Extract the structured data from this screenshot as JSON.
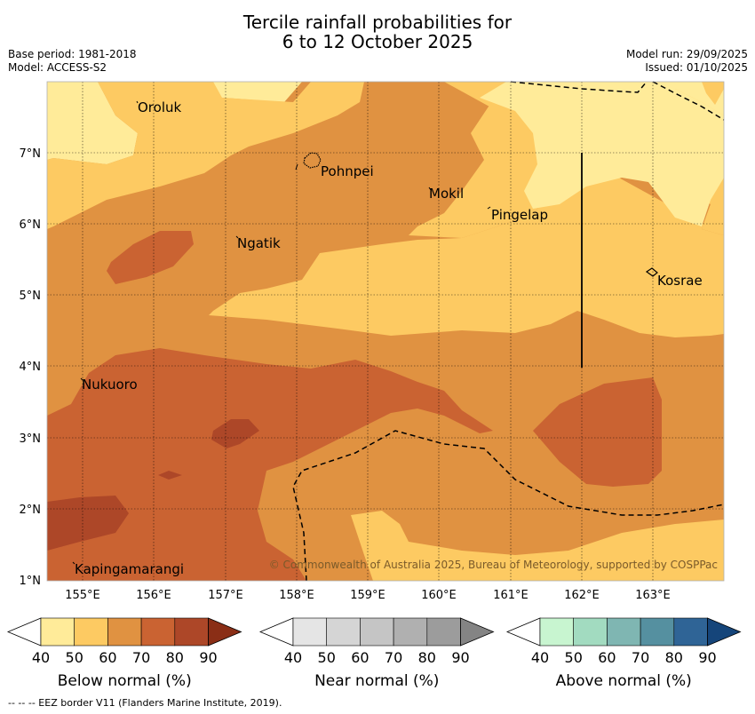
{
  "title": {
    "line1": "Tercile rainfall probabilities for",
    "line2": "6 to 12 October 2025"
  },
  "meta": {
    "base_period": "Base period: 1981-2018",
    "model": "Model: ACCESS-S2",
    "model_run": "Model run: 29/09/2025",
    "issued": "Issued: 01/10/2025"
  },
  "map": {
    "lat_labels": [
      "7°N",
      "6°N",
      "5°N",
      "4°N",
      "3°N",
      "2°N",
      "1°N"
    ],
    "lon_labels": [
      "155°E",
      "156°E",
      "157°E",
      "158°E",
      "159°E",
      "160°E",
      "161°E",
      "162°E",
      "163°E"
    ],
    "places": [
      "Oroluk",
      "Pohnpei",
      "Mokil",
      "Pingelap",
      "Ngatik",
      "Kosrae",
      "Nukuoro",
      "Kapingamarangi"
    ],
    "copyright": "© Commonwealth of Australia 2025, Bureau of Meteorology, supported by COSPPac"
  },
  "colorbars": [
    {
      "title": "Below normal (%)",
      "ticks": [
        "40",
        "50",
        "60",
        "70",
        "80",
        "90"
      ],
      "colors": [
        "#ffffff",
        "#ffeb99",
        "#fdca62",
        "#e09241",
        "#ca6332",
        "#ad4728",
        "#8a2e16"
      ]
    },
    {
      "title": "Near normal (%)",
      "ticks": [
        "40",
        "50",
        "60",
        "70",
        "80",
        "90"
      ],
      "colors": [
        "#ffffff",
        "#e5e5e5",
        "#d5d5d5",
        "#c5c5c5",
        "#b0b0b0",
        "#9c9c9c",
        "#848484"
      ]
    },
    {
      "title": "Above normal (%)",
      "ticks": [
        "40",
        "50",
        "60",
        "70",
        "80",
        "90"
      ],
      "colors": [
        "#ffffff",
        "#c8f5d0",
        "#a2dbc0",
        "#7fb6b2",
        "#5590a0",
        "#2f6496",
        "#15457a"
      ]
    }
  ],
  "footer": "--  --  -- EEZ border V11 (Flanders Marine Institute, 2019)."
}
